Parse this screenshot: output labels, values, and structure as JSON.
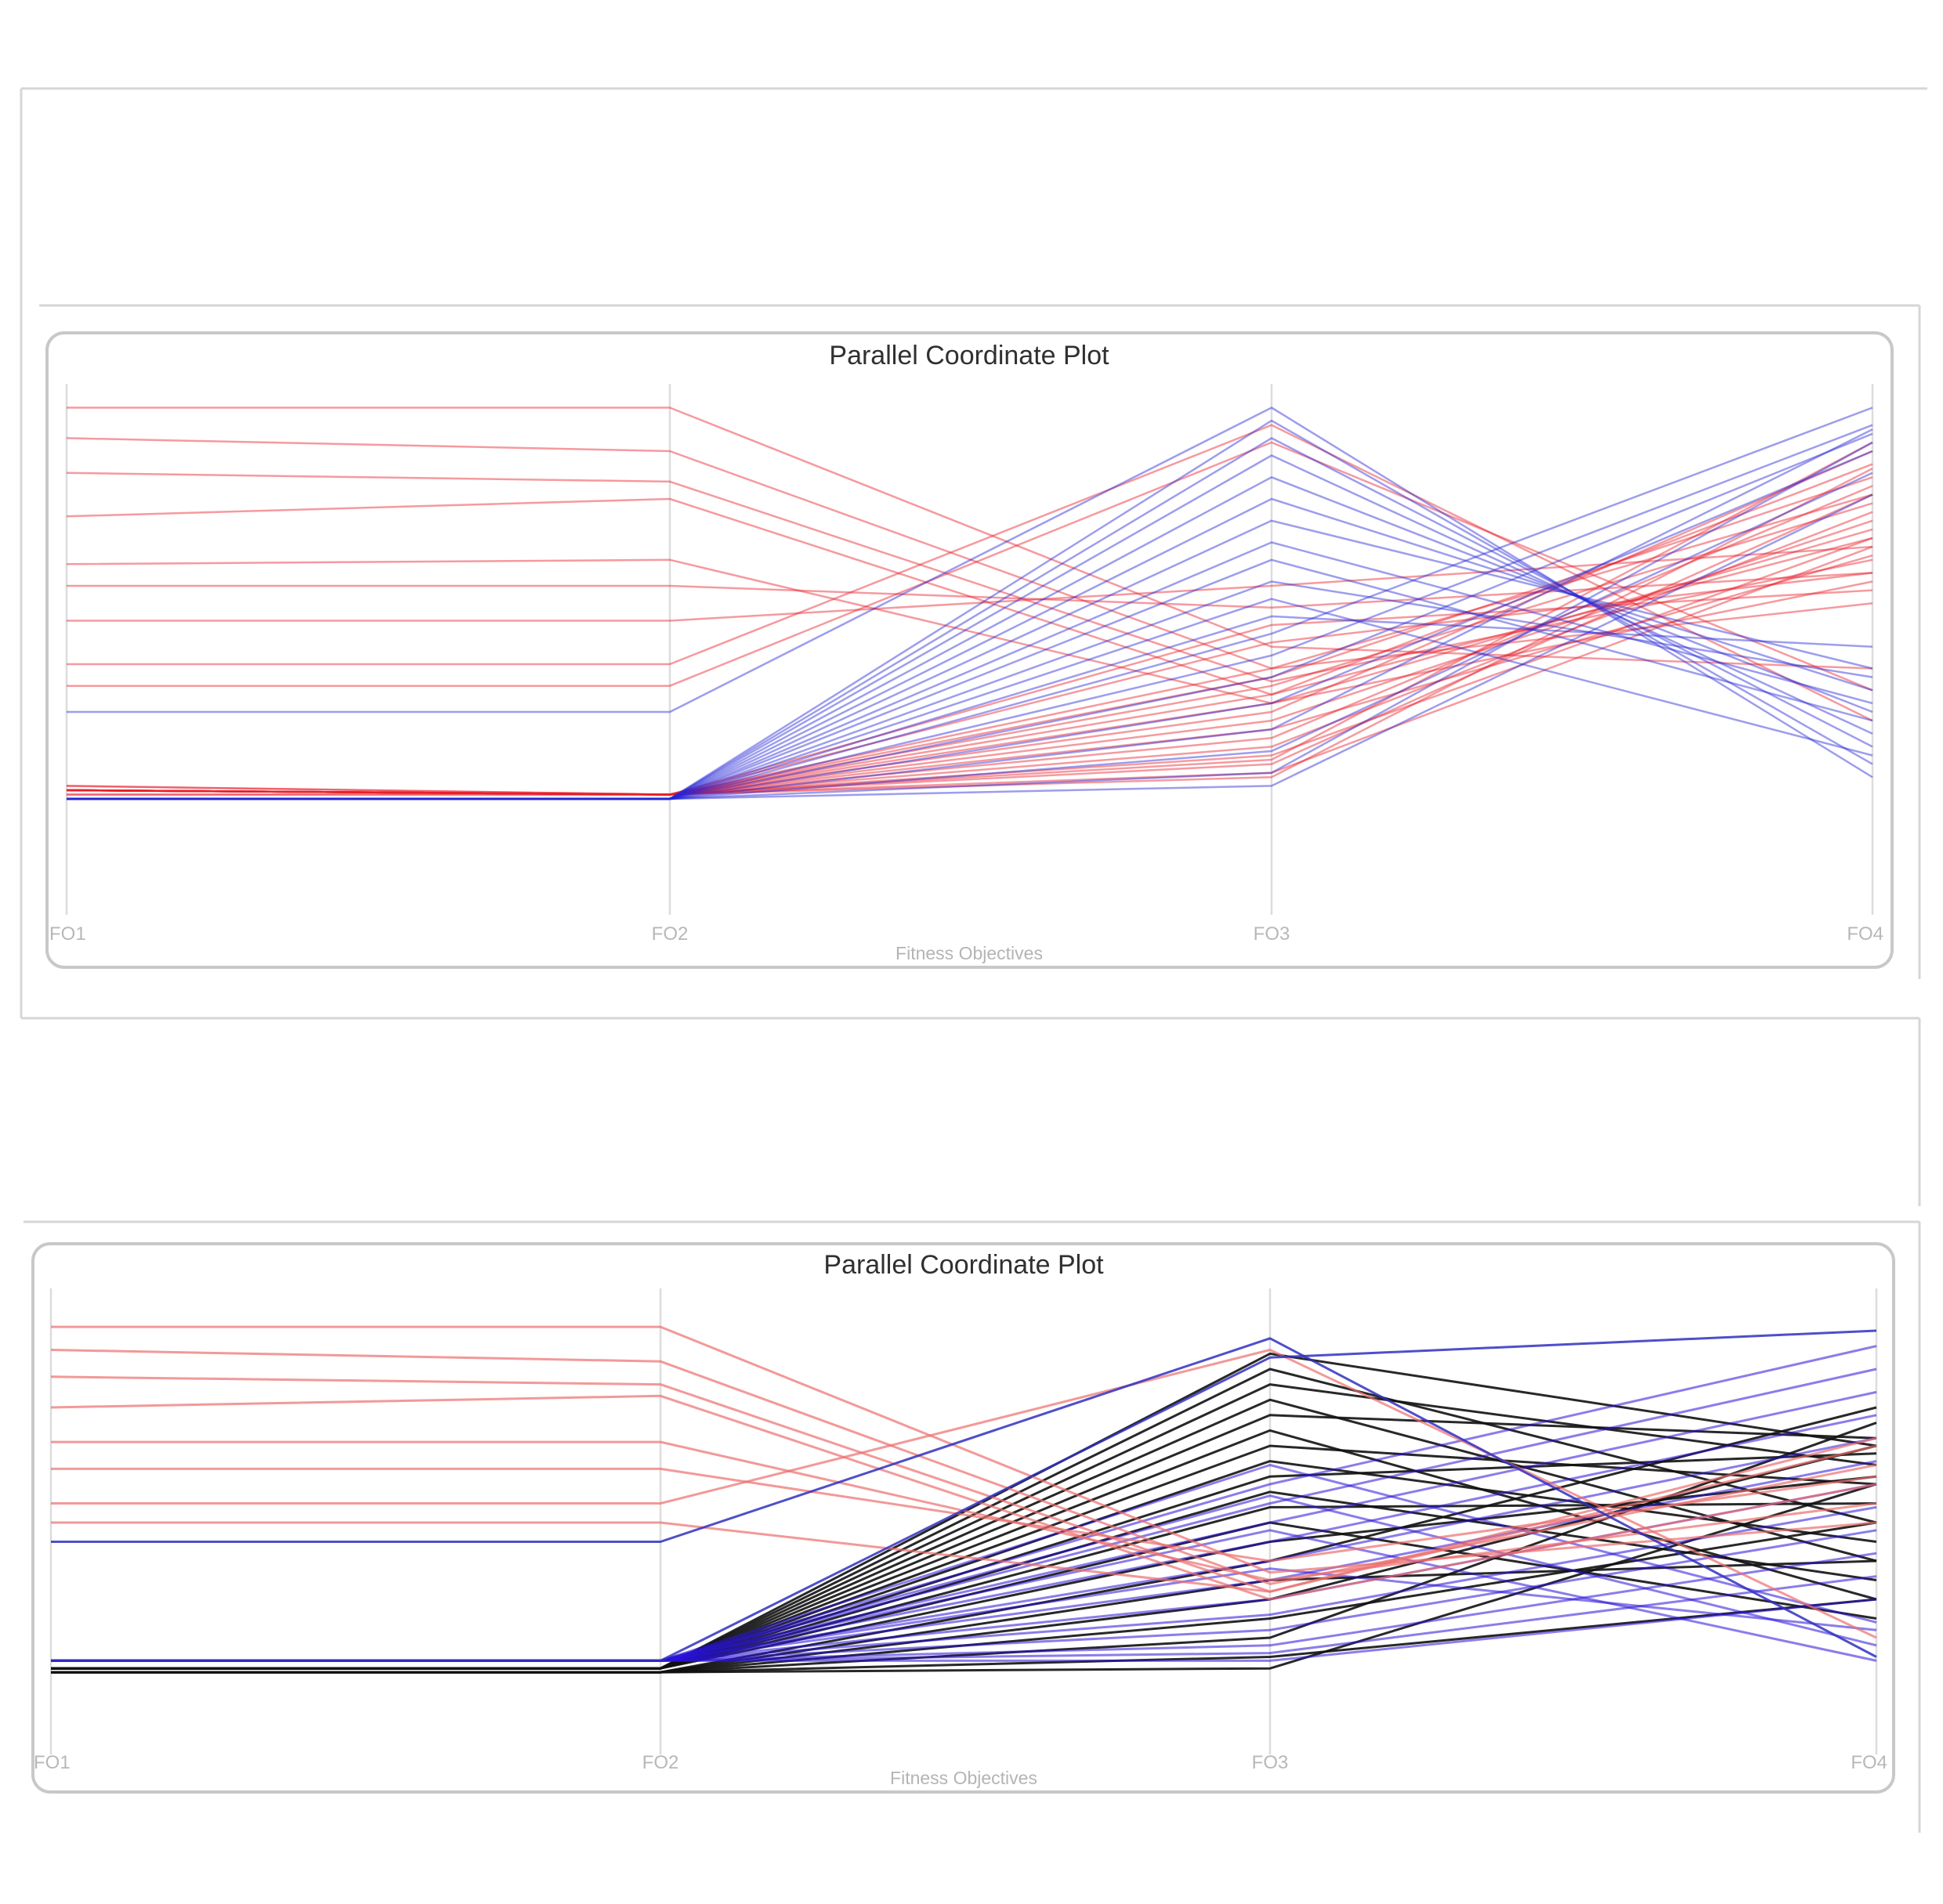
{
  "chart_data": [
    {
      "type": "parallel_coordinates",
      "title": "Parallel Coordinate Plot",
      "xlabel": "Fitness Objectives",
      "axes": [
        "FO1",
        "FO2",
        "FO3",
        "FO4"
      ],
      "ylim": [
        0,
        1
      ],
      "grid": false,
      "colors": {
        "series_a": "#e8202a",
        "series_b": "#2525d8"
      },
      "series": [
        {
          "color_key": "series_a",
          "lines": [
            [
              0.9,
              0.9,
              0.35,
              0.3
            ],
            [
              0.83,
              0.8,
              0.3,
              0.45
            ],
            [
              0.75,
              0.73,
              0.27,
              0.55
            ],
            [
              0.65,
              0.69,
              0.24,
              0.6
            ],
            [
              0.54,
              0.55,
              0.22,
              0.5
            ],
            [
              0.49,
              0.49,
              0.44,
              0.52
            ],
            [
              0.41,
              0.41,
              0.49,
              0.58
            ],
            [
              0.31,
              0.31,
              0.86,
              0.18
            ],
            [
              0.26,
              0.26,
              0.82,
              0.25
            ],
            [
              0.03,
              0.01,
              0.3,
              0.7
            ],
            [
              0.03,
              0.01,
              0.28,
              0.74
            ],
            [
              0.02,
              0.01,
              0.26,
              0.68
            ],
            [
              0.02,
              0.01,
              0.24,
              0.77
            ],
            [
              0.02,
              0.01,
              0.22,
              0.62
            ],
            [
              0.02,
              0.01,
              0.2,
              0.8
            ],
            [
              0.02,
              0.01,
              0.18,
              0.64
            ],
            [
              0.02,
              0.01,
              0.16,
              0.56
            ],
            [
              0.02,
              0.01,
              0.14,
              0.72
            ],
            [
              0.02,
              0.01,
              0.12,
              0.66
            ],
            [
              0.02,
              0.01,
              0.1,
              0.6
            ],
            [
              0.02,
              0.01,
              0.09,
              0.82
            ],
            [
              0.02,
              0.01,
              0.08,
              0.7
            ],
            [
              0.02,
              0.01,
              0.06,
              0.58
            ],
            [
              0.02,
              0.01,
              0.05,
              0.76
            ],
            [
              0.01,
              0.01,
              0.4,
              0.48
            ],
            [
              0.01,
              0.01,
              0.36,
              0.52
            ]
          ]
        },
        {
          "color_key": "series_b",
          "lines": [
            [
              0.2,
              0.2,
              0.9,
              0.05
            ],
            [
              0.0,
              0.0,
              0.87,
              0.08
            ],
            [
              0.0,
              0.0,
              0.83,
              0.12
            ],
            [
              0.0,
              0.0,
              0.79,
              0.15
            ],
            [
              0.0,
              0.0,
              0.74,
              0.2
            ],
            [
              0.0,
              0.0,
              0.69,
              0.25
            ],
            [
              0.0,
              0.0,
              0.64,
              0.3
            ],
            [
              0.0,
              0.0,
              0.59,
              0.22
            ],
            [
              0.0,
              0.0,
              0.55,
              0.18
            ],
            [
              0.0,
              0.0,
              0.5,
              0.28
            ],
            [
              0.0,
              0.0,
              0.46,
              0.1
            ],
            [
              0.0,
              0.0,
              0.42,
              0.35
            ],
            [
              0.0,
              0.0,
              0.38,
              0.9
            ],
            [
              0.0,
              0.0,
              0.33,
              0.86
            ],
            [
              0.0,
              0.0,
              0.28,
              0.84
            ],
            [
              0.0,
              0.0,
              0.22,
              0.8
            ],
            [
              0.0,
              0.0,
              0.16,
              0.85
            ],
            [
              0.0,
              0.0,
              0.11,
              0.75
            ],
            [
              0.0,
              0.0,
              0.06,
              0.82
            ],
            [
              0.0,
              0.0,
              0.03,
              0.7
            ]
          ]
        }
      ]
    },
    {
      "type": "parallel_coordinates",
      "title": "Parallel Coordinate Plot",
      "xlabel": "Fitness Objectives",
      "axes": [
        "FO1",
        "FO2",
        "FO3",
        "FO4"
      ],
      "ylim": [
        0,
        1
      ],
      "grid": false,
      "colors": {
        "series_a": "#111111",
        "series_b": "#2a12d8",
        "series_c": "#ec6e6e",
        "series_d": "#3030c0"
      },
      "series": [
        {
          "color_key": "series_a",
          "lines": [
            [
              0.02,
              0.02,
              0.84,
              0.6
            ],
            [
              0.02,
              0.02,
              0.8,
              0.4
            ],
            [
              0.02,
              0.02,
              0.76,
              0.55
            ],
            [
              0.02,
              0.02,
              0.72,
              0.3
            ],
            [
              0.02,
              0.02,
              0.68,
              0.62
            ],
            [
              0.02,
              0.02,
              0.64,
              0.2
            ],
            [
              0.02,
              0.02,
              0.6,
              0.5
            ],
            [
              0.02,
              0.02,
              0.56,
              0.35
            ],
            [
              0.02,
              0.02,
              0.52,
              0.58
            ],
            [
              0.02,
              0.02,
              0.48,
              0.25
            ],
            [
              0.02,
              0.02,
              0.44,
              0.45
            ],
            [
              0.02,
              0.02,
              0.4,
              0.15
            ],
            [
              0.02,
              0.02,
              0.35,
              0.52
            ],
            [
              0.01,
              0.01,
              0.3,
              0.7
            ],
            [
              0.01,
              0.01,
              0.25,
              0.3
            ],
            [
              0.01,
              0.01,
              0.2,
              0.6
            ],
            [
              0.01,
              0.01,
              0.15,
              0.4
            ],
            [
              0.01,
              0.01,
              0.1,
              0.66
            ],
            [
              0.01,
              0.01,
              0.05,
              0.2
            ],
            [
              0.01,
              0.01,
              0.02,
              0.5
            ]
          ]
        },
        {
          "color_key": "series_b",
          "lines": [
            [
              0.04,
              0.04,
              0.5,
              0.86
            ],
            [
              0.04,
              0.04,
              0.45,
              0.8
            ],
            [
              0.04,
              0.04,
              0.4,
              0.74
            ],
            [
              0.04,
              0.04,
              0.35,
              0.68
            ],
            [
              0.04,
              0.04,
              0.3,
              0.62
            ],
            [
              0.04,
              0.04,
              0.25,
              0.56
            ],
            [
              0.04,
              0.04,
              0.2,
              0.5
            ],
            [
              0.04,
              0.04,
              0.16,
              0.44
            ],
            [
              0.04,
              0.04,
              0.12,
              0.38
            ],
            [
              0.04,
              0.04,
              0.08,
              0.32
            ],
            [
              0.04,
              0.04,
              0.06,
              0.26
            ],
            [
              0.04,
              0.04,
              0.04,
              0.2
            ],
            [
              0.04,
              0.04,
              0.55,
              0.14
            ],
            [
              0.04,
              0.04,
              0.47,
              0.08
            ],
            [
              0.04,
              0.04,
              0.38,
              0.04
            ],
            [
              0.04,
              0.04,
              0.28,
              0.12
            ]
          ]
        },
        {
          "color_key": "series_c",
          "lines": [
            [
              0.91,
              0.91,
              0.27,
              0.4
            ],
            [
              0.85,
              0.82,
              0.24,
              0.55
            ],
            [
              0.78,
              0.76,
              0.22,
              0.6
            ],
            [
              0.7,
              0.73,
              0.2,
              0.5
            ],
            [
              0.61,
              0.61,
              0.25,
              0.45
            ],
            [
              0.54,
              0.54,
              0.3,
              0.52
            ],
            [
              0.45,
              0.45,
              0.85,
              0.1
            ],
            [
              0.4,
              0.4,
              0.22,
              0.62
            ]
          ]
        },
        {
          "color_key": "series_d",
          "lines": [
            [
              0.35,
              0.35,
              0.88,
              0.05
            ],
            [
              0.04,
              0.04,
              0.83,
              0.9
            ]
          ]
        }
      ]
    }
  ]
}
